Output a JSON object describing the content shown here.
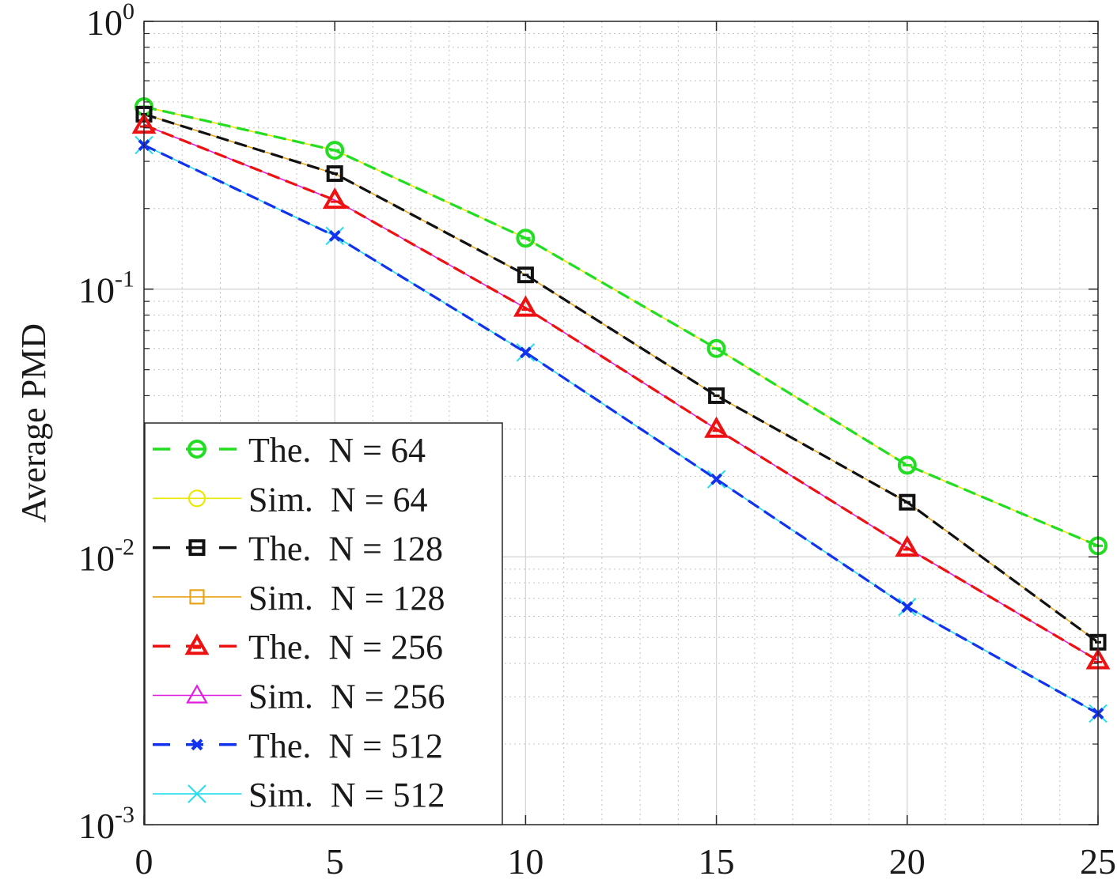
{
  "chart_data": {
    "type": "line",
    "title": "",
    "xlabel": "",
    "ylabel": "Average PMD",
    "yscale": "log",
    "xlim": [
      0,
      25
    ],
    "ylim": [
      0.001,
      1
    ],
    "grid": true,
    "minor_grid": true,
    "x_ticks": [
      {
        "value": 0,
        "label": "0"
      },
      {
        "value": 5,
        "label": "5"
      },
      {
        "value": 10,
        "label": "10"
      },
      {
        "value": 15,
        "label": "15"
      },
      {
        "value": 20,
        "label": "20"
      },
      {
        "value": 25,
        "label": "25"
      }
    ],
    "y_ticks": [
      {
        "value": 1,
        "base": "10",
        "exp": "0"
      },
      {
        "value": 0.1,
        "base": "10",
        "exp": "-1"
      },
      {
        "value": 0.01,
        "base": "10",
        "exp": "-2"
      },
      {
        "value": 0.001,
        "base": "10",
        "exp": "-3"
      }
    ],
    "legend_position": "bottom-left",
    "x": [
      0,
      5,
      10,
      15,
      20,
      25
    ],
    "series": [
      {
        "name": "The. N = 64",
        "label": "The.  N = 64",
        "color": "#22dd22",
        "dash": true,
        "marker": "circle-bar",
        "values": [
          0.48,
          0.33,
          0.155,
          0.06,
          0.022,
          0.011
        ]
      },
      {
        "name": "Sim. N = 64",
        "label": "Sim.  N = 64",
        "color": "#e8e800",
        "dash": false,
        "marker": "circle",
        "values": [
          0.48,
          0.33,
          0.155,
          0.06,
          0.022,
          0.011
        ]
      },
      {
        "name": "The. N = 128",
        "label": "The.  N = 128",
        "color": "#111111",
        "dash": true,
        "marker": "square-bar",
        "values": [
          0.45,
          0.27,
          0.113,
          0.04,
          0.016,
          0.0048
        ]
      },
      {
        "name": "Sim. N = 128",
        "label": "Sim.  N = 128",
        "color": "#e8a317",
        "dash": false,
        "marker": "square",
        "values": [
          0.45,
          0.27,
          0.113,
          0.04,
          0.016,
          0.0048
        ]
      },
      {
        "name": "The. N = 256",
        "label": "The.  N = 256",
        "color": "#ee1111",
        "dash": true,
        "marker": "triangle-bar",
        "values": [
          0.41,
          0.215,
          0.085,
          0.03,
          0.0108,
          0.0041
        ]
      },
      {
        "name": "Sim. N = 256",
        "label": "Sim.  N = 256",
        "color": "#e01ce0",
        "dash": false,
        "marker": "triangle",
        "values": [
          0.41,
          0.215,
          0.085,
          0.03,
          0.0108,
          0.0041
        ]
      },
      {
        "name": "The. N = 512",
        "label": "The.  N = 512",
        "color": "#1133ee",
        "dash": true,
        "marker": "x-bold",
        "values": [
          0.345,
          0.158,
          0.058,
          0.0195,
          0.0065,
          0.0026
        ]
      },
      {
        "name": "Sim. N = 512",
        "label": "Sim.  N = 512",
        "color": "#22ddee",
        "dash": false,
        "marker": "x",
        "values": [
          0.345,
          0.158,
          0.058,
          0.0195,
          0.0065,
          0.0026
        ]
      }
    ]
  }
}
